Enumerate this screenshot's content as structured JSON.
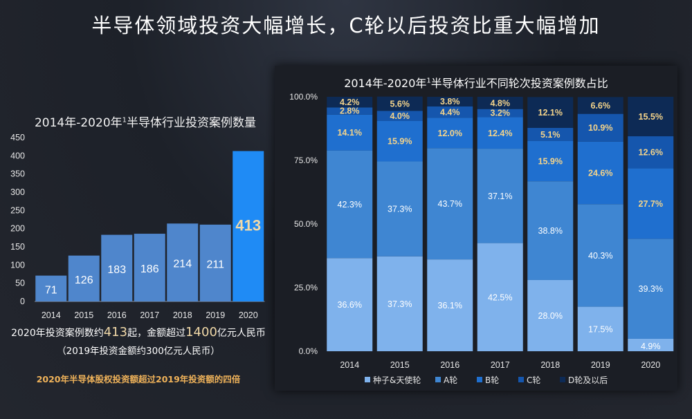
{
  "main_title": "半导体领域投资大幅增长，C轮以后投资比重大幅增加",
  "notes": {
    "line1_prefix": "2020年投资案例数约",
    "line1_count": "413",
    "line1_mid": "起，金额超过",
    "line1_amount": "1400",
    "line1_suffix": "亿元人民币",
    "line2": "（2019年投资金额约300亿元人民币）",
    "highlight": "2020年半导体股权投资额超过2019年投资额的四倍"
  },
  "colors": {
    "left_bar": "#4f86cc",
    "left_bar_highlight": "#1f8bf5",
    "seed_angel": "#7fb2ec",
    "round_a": "#3f86d2",
    "round_b": "#1f6fcf",
    "round_c": "#1556ad",
    "round_d_plus": "#0d2a55"
  },
  "chart_data": [
    {
      "type": "bar",
      "title_main": "2014年-2020年",
      "title_sup": "1",
      "title_rest": "半导体行业投资案例数量",
      "categories": [
        "2014",
        "2015",
        "2016",
        "2017",
        "2018",
        "2019",
        "2020"
      ],
      "values": [
        71,
        126,
        183,
        186,
        214,
        211,
        413
      ],
      "data_labels": [
        "71",
        "126",
        "183",
        "186",
        "214",
        "211",
        "413"
      ],
      "ylim": [
        0,
        450
      ],
      "yticks": [
        "0",
        "50",
        "100",
        "150",
        "200",
        "250",
        "300",
        "350",
        "400",
        "450"
      ],
      "grid": false
    },
    {
      "type": "bar",
      "stacked": "percent",
      "title_main": "2014年-2020年",
      "title_sup": "1",
      "title_rest": "半导体行业不同轮次投资案例数占比",
      "categories": [
        "2014",
        "2015",
        "2016",
        "2017",
        "2018",
        "2019",
        "2020"
      ],
      "ylim": [
        0,
        100
      ],
      "yticks": [
        "0.0%",
        "25.0%",
        "50.0%",
        "75.0%",
        "100.0%"
      ],
      "legend_position": "bottom",
      "series": [
        {
          "name": "种子&天使轮",
          "values": [
            36.6,
            37.3,
            36.1,
            42.5,
            28.0,
            17.5,
            4.9
          ],
          "labels": [
            "36.6%",
            "37.3%",
            "36.1%",
            "42.5%",
            "28.0%",
            "17.5%",
            "4.9%"
          ]
        },
        {
          "name": "A轮",
          "values": [
            42.3,
            37.3,
            43.7,
            37.1,
            38.8,
            40.3,
            39.3
          ],
          "labels": [
            "42.3%",
            "37.3%",
            "43.7%",
            "37.1%",
            "38.8%",
            "40.3%",
            "39.3%"
          ]
        },
        {
          "name": "B轮",
          "values": [
            14.1,
            15.9,
            12.0,
            12.4,
            15.9,
            24.6,
            27.7
          ],
          "labels": [
            "14.1%",
            "15.9%",
            "12.0%",
            "12.4%",
            "15.9%",
            "24.6%",
            "27.7%"
          ]
        },
        {
          "name": "C轮",
          "values": [
            2.8,
            4.0,
            4.4,
            3.2,
            5.1,
            10.9,
            12.6
          ],
          "labels": [
            "2.8%",
            "4.0%",
            "4.4%",
            "3.2%",
            "5.1%",
            "10.9%",
            "12.6%"
          ]
        },
        {
          "name": "D轮及以后",
          "values": [
            4.2,
            5.6,
            3.8,
            4.8,
            12.1,
            6.6,
            15.5
          ],
          "labels": [
            "4.2%",
            "5.6%",
            "3.8%",
            "4.8%",
            "12.1%",
            "6.6%",
            "15.5%"
          ]
        }
      ]
    }
  ]
}
